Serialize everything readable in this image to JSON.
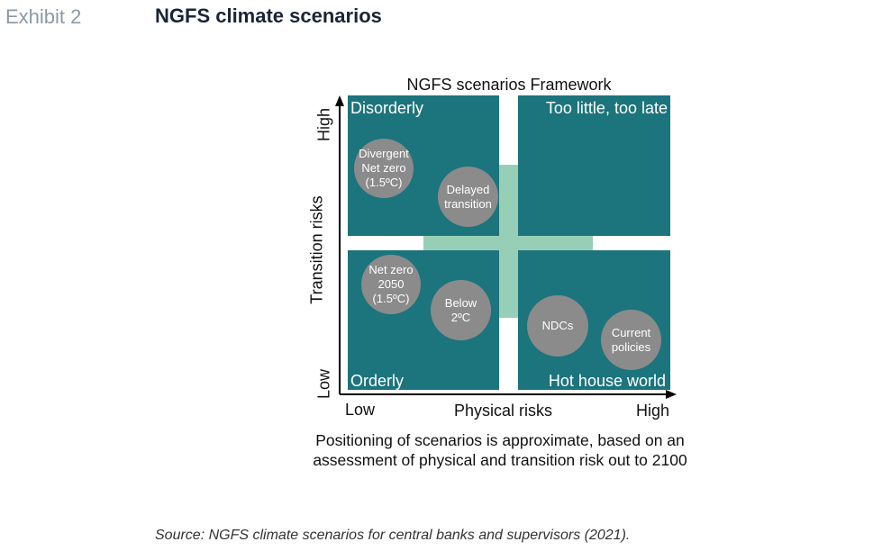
{
  "header": {
    "exhibit_label": "Exhibit 2",
    "title": "NGFS climate scenarios"
  },
  "framework": {
    "title": "NGFS scenarios Framework",
    "colors": {
      "quadrant": "#1c747d",
      "cross": "#97cfb6",
      "bubble": "#8b8b8b"
    },
    "quadrants": {
      "top_left": "Disorderly",
      "top_right": "Too little, too late",
      "bottom_left": "Orderly",
      "bottom_right": "Hot house world"
    },
    "scenarios": {
      "divergent": "Divergent\nNet zero\n(1.5ºC)",
      "delayed": "Delayed\ntransition",
      "net_zero": "Net zero\n2050\n(1.5ºC)",
      "below": "Below\n2ºC",
      "ndcs": "NDCs",
      "current": "Current\npolicies"
    },
    "y_axis": {
      "title": "Transition risks",
      "high": "High",
      "low": "Low"
    },
    "x_axis": {
      "title": "Physical risks",
      "low": "Low",
      "high": "High"
    },
    "note": "Positioning of scenarios is approximate, based on an assessment of physical and transition risk out to 2100"
  },
  "source": "Source: NGFS climate scenarios for central banks and supervisors (2021)."
}
